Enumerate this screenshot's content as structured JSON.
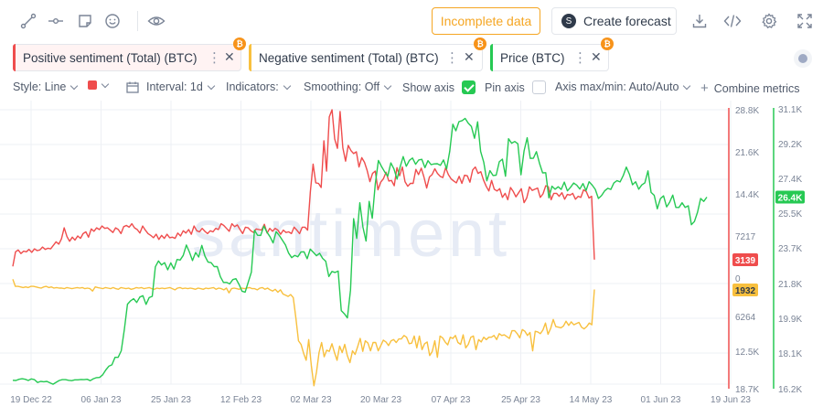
{
  "toolbar": {
    "incomplete_label": "Incomplete data",
    "forecast_label": "Create forecast"
  },
  "metrics": [
    {
      "label": "Positive sentiment (Total) (BTC)",
      "color": "#ef4d4d"
    },
    {
      "label": "Negative sentiment (Total) (BTC)",
      "color": "#f8c03e"
    },
    {
      "label": "Price (BTC)",
      "color": "#26c953"
    }
  ],
  "settings": {
    "style": "Style: Line",
    "interval": "Interval: 1d",
    "indicators": "Indicators:",
    "smoothing": "Smoothing: Off",
    "show_axis": "Show axis",
    "pin_axis": "Pin axis",
    "axis_maxmin": "Axis max/min: Auto/Auto",
    "combine": "Combine metrics"
  },
  "chart_data": {
    "type": "line",
    "watermark": "santiment",
    "x_labels": [
      "19 Dec 22",
      "06 Jan 23",
      "25 Jan 23",
      "12 Feb 23",
      "02 Mar 23",
      "20 Mar 23",
      "07 Apr 23",
      "25 Apr 23",
      "14 May 23",
      "01 Jun 23",
      "19 Jun 23"
    ],
    "sentiment_axis_labels": [
      "28.8K",
      "21.6K",
      "14.4K",
      "7217",
      "0",
      "6264",
      "12.5K",
      "18.7K"
    ],
    "price_axis_labels": [
      "31.1K",
      "29.2K",
      "27.4K",
      "25.5K",
      "23.7K",
      "21.8K",
      "19.9K",
      "18.1K",
      "16.2K"
    ],
    "current_values": {
      "positive": "3139",
      "negative": "1932",
      "price": "26.4K"
    },
    "series": [
      {
        "name": "Positive sentiment (Total) (BTC)",
        "color": "#ef4d4d",
        "axis": "sentiment_pos",
        "values": [
          2000,
          4500,
          4800,
          4200,
          4600,
          4500,
          4900,
          4400,
          5000,
          4700,
          4800,
          5300,
          4900,
          5100,
          5000,
          5600,
          6200,
          5800,
          6700,
          8600,
          7100,
          6300,
          7000,
          6500,
          7200,
          6800,
          7600,
          7900,
          7000,
          8400,
          8000,
          8600,
          8300,
          8900,
          8500,
          8600,
          8200,
          7800,
          8600,
          8300,
          7600,
          8800,
          9000,
          8700,
          9300,
          8600,
          8300,
          7700,
          8900,
          8200,
          7600,
          7300,
          6900,
          7500,
          6600,
          7300,
          6800,
          7500,
          6900,
          7000,
          6800,
          7700,
          7200,
          8100,
          7700,
          8300,
          7500,
          8900,
          8100,
          7900,
          8500,
          8000,
          7600,
          8100,
          7900,
          8500,
          8300,
          9300,
          9000,
          8500,
          8000,
          9300,
          8800,
          9100,
          8300,
          7600,
          8700,
          8600,
          8100,
          7800,
          8400,
          8300,
          8200,
          9200,
          7700,
          8500,
          8000,
          8500,
          8200,
          7500,
          8200,
          7800,
          7900,
          7600,
          8700,
          8200,
          7600,
          8700,
          8700,
          8200,
          14800,
          19500,
          16300,
          16200,
          15500,
          23500,
          18300,
          27600,
          28800,
          23800,
          22200,
          28500,
          22300,
          20000,
          22700,
          21800,
          21300,
          21600,
          19000,
          20600,
          19800,
          18400,
          16500,
          17900,
          18300,
          15100,
          16400,
          17000,
          18100,
          16600,
          16700,
          15800,
          18900,
          17500,
          19000,
          16500,
          15700,
          16200,
          16200,
          18600,
          17700,
          18800,
          17300,
          15400,
          17300,
          17700,
          18700,
          17900,
          17400,
          17200,
          18900,
          17700,
          17000,
          16600,
          16300,
          17400,
          16200,
          17600,
          17500,
          16400,
          18500,
          19000,
          17900,
          18200,
          16800,
          15700,
          14900,
          16700,
          15200,
          14900,
          15300,
          13800,
          14500,
          13400,
          15500,
          14800,
          13900,
          14600,
          15300,
          12900,
          13700,
          15600,
          15000,
          15200,
          15400,
          13800,
          14400,
          15800,
          15600,
          13400,
          14500,
          14500,
          14000,
          14600,
          13500,
          14300,
          14200,
          14500,
          13500,
          14000,
          13800,
          15100,
          14800,
          13700,
          14000,
          3139
        ]
      },
      {
        "name": "Negative sentiment (Total) (BTC)",
        "color": "#f8c03e",
        "axis": "sentiment_neg",
        "values": [
          200,
          1400,
          1400,
          1500,
          1600,
          1500,
          1600,
          1400,
          1400,
          1500,
          1600,
          1700,
          1500,
          1400,
          1600,
          1500,
          1700,
          1600,
          1700,
          1700,
          1800,
          1600,
          1700,
          1800,
          1700,
          1600,
          1700,
          1600,
          1800,
          1700,
          1800,
          2200,
          1500,
          1600,
          1700,
          1800,
          1600,
          1700,
          1800,
          1600,
          1800,
          1900,
          1600,
          1700,
          1800,
          1700,
          1900,
          1800,
          1600,
          1700,
          1600,
          1800,
          1700,
          1600,
          1800,
          1900,
          1700,
          1800,
          1700,
          1800,
          1700,
          1600,
          1800,
          2000,
          1700,
          1600,
          1800,
          1700,
          1800,
          1700,
          1800,
          1900,
          1700,
          1800,
          1900,
          1700,
          1800,
          1700,
          1600,
          1900,
          1700,
          1800,
          2000,
          1700,
          2500,
          1800,
          1700,
          1800,
          1900,
          1700,
          1800,
          1700,
          1600,
          1800,
          1800,
          2000,
          1700,
          1600,
          1900,
          1700,
          2000,
          2200,
          1900,
          2400,
          2000,
          2700,
          2900,
          3100,
          2800,
          3300,
          6800,
          10600,
          11200,
          12700,
          13900,
          10400,
          14700,
          18200,
          15900,
          12600,
          10900,
          13300,
          12200,
          12400,
          11100,
          12600,
          13900,
          11500,
          12600,
          11200,
          13100,
          14300,
          12300,
          12900,
          11600,
          10200,
          12400,
          10600,
          11000,
          12300,
          10900,
          10900,
          12300,
          11400,
          10500,
          10800,
          11400,
          10600,
          10400,
          10900,
          10300,
          10300,
          9700,
          10000,
          11100,
          11000,
          9800,
          11800,
          9800,
          12100,
          11100,
          10800,
          13100,
          12400,
          10600,
          13400,
          9800,
          10100,
          10800,
          11300,
          10000,
          10200,
          9700,
          10900,
          11200,
          9600,
          11800,
          11200,
          10000,
          9800,
          12100,
          10400,
          10800,
          10000,
          10400,
          10000,
          10000,
          9700,
          10400,
          9400,
          9700,
          9600,
          9900,
          10200,
          8900,
          8900,
          9400,
          10100,
          8700,
          9000,
          9700,
          9200,
          12300,
          9000,
          9100,
          9400,
          8800,
          7600,
          9500,
          8500,
          7000,
          8200,
          8300,
          8400,
          8100,
          7300,
          8000,
          7400,
          7900,
          7700,
          7500,
          8300,
          8600,
          8200,
          7600,
          7900,
          1932
        ]
      },
      {
        "name": "Price (BTC)",
        "color": "#26c953",
        "axis": "price",
        "values": [
          16650,
          16640,
          16700,
          16730,
          16700,
          16640,
          16720,
          16680,
          16530,
          16590,
          16570,
          16590,
          16510,
          16440,
          16540,
          16640,
          16680,
          16680,
          16650,
          16630,
          16670,
          16670,
          16690,
          16680,
          16700,
          16630,
          16730,
          16790,
          16800,
          16940,
          17200,
          17400,
          17470,
          17870,
          17870,
          18220,
          19360,
          20700,
          20880,
          20990,
          20790,
          21080,
          21150,
          20690,
          21050,
          21120,
          22690,
          23000,
          22790,
          22910,
          22530,
          22900,
          22570,
          23080,
          23050,
          23300,
          23850,
          23480,
          23020,
          23450,
          23210,
          23830,
          23260,
          22940,
          22910,
          22700,
          22700,
          22160,
          21860,
          21860,
          21780,
          22010,
          22060,
          21750,
          21390,
          21340,
          21880,
          22410,
          24640,
          24370,
          24360,
          24860,
          24540,
          24300,
          23960,
          24560,
          24360,
          24110,
          23850,
          23420,
          23180,
          23300,
          23220,
          23480,
          23490,
          23120,
          23630,
          23460,
          23280,
          23410,
          23140,
          22990,
          22170,
          22440,
          22390,
          22460,
          20360,
          20190,
          19970,
          21450,
          25250,
          24200,
          26100,
          24800,
          24060,
          26170,
          25270,
          27100,
          28350,
          28030,
          27750,
          27510,
          28220,
          27900,
          27360,
          28000,
          28560,
          28040,
          28360,
          28480,
          28150,
          28380,
          28410,
          27970,
          28340,
          28130,
          28170,
          28180,
          28090,
          28380,
          27900,
          28840,
          30280,
          29930,
          30420,
          30470,
          30590,
          30330,
          30160,
          29530,
          30410,
          28830,
          28260,
          27270,
          27810,
          27550,
          27570,
          28280,
          28420,
          27510,
          29510,
          29270,
          29360,
          29240,
          27590,
          28860,
          29560,
          28460,
          28470,
          28820,
          28200,
          27690,
          27700,
          26360,
          26980,
          26820,
          26950,
          26810,
          27200,
          26730,
          26920,
          27150,
          27040,
          26830,
          27120,
          26750,
          27220,
          27040,
          26810,
          26330,
          26480,
          26730,
          26870,
          26810,
          27150,
          27280,
          27210,
          27540,
          28000,
          27620,
          27060,
          27220,
          26820,
          27050,
          27160,
          27800,
          26650,
          26500,
          25780,
          26320,
          26470,
          25880,
          26130,
          26510,
          25850,
          25850,
          26100,
          25850,
          25940,
          24930,
          25100,
          25600,
          26330,
          26170,
          26400
        ]
      }
    ]
  }
}
